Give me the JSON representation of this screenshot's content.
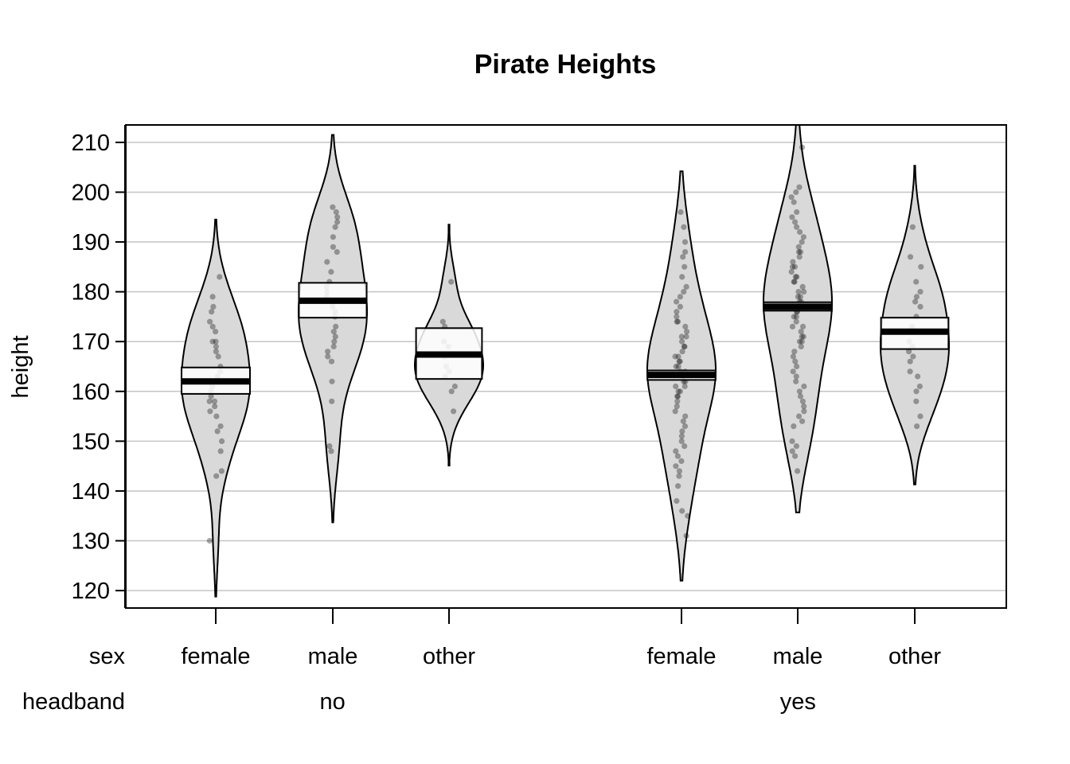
{
  "chart_data": {
    "type": "pirateplot",
    "title": "Pirate Heights",
    "ylabel": "height",
    "xlabel": "",
    "ylim": [
      116.5,
      213.5
    ],
    "yticks": [
      120,
      130,
      140,
      150,
      160,
      170,
      180,
      190,
      200,
      210
    ],
    "grid": true,
    "factor_labels": {
      "inner": "sex",
      "outer": "headband"
    },
    "groups": [
      {
        "label": "no",
        "categories": [
          "female",
          "male",
          "other"
        ]
      },
      {
        "label": "yes",
        "categories": [
          "female",
          "male",
          "other"
        ]
      }
    ],
    "series": [
      {
        "headband": "no",
        "sex": "female",
        "mean": 162.0,
        "ci": [
          159.5,
          164.8
        ],
        "range": [
          118.8,
          194.5
        ],
        "points": [
          183,
          179,
          177,
          176,
          174,
          173,
          172,
          170,
          170,
          169,
          168,
          167,
          165,
          164,
          163,
          162,
          161,
          160,
          159,
          158,
          158,
          157,
          156,
          155,
          153,
          152,
          150,
          148,
          144,
          143,
          130
        ]
      },
      {
        "headband": "no",
        "sex": "male",
        "mean": 178.2,
        "ci": [
          174.8,
          181.8
        ],
        "range": [
          133.7,
          211.5
        ],
        "points": [
          197,
          196,
          195,
          194,
          193,
          191,
          189,
          188,
          186,
          184,
          182,
          181,
          180,
          179,
          178,
          177,
          176,
          175,
          173,
          172,
          171,
          170,
          169,
          168,
          167,
          166,
          162,
          158,
          149,
          148
        ]
      },
      {
        "headband": "no",
        "sex": "other",
        "mean": 167.4,
        "ci": [
          162.5,
          172.7
        ],
        "range": [
          145.1,
          193.5
        ],
        "points": [
          182,
          174,
          173,
          170,
          169,
          167,
          165,
          164,
          163,
          161,
          160,
          156
        ]
      },
      {
        "headband": "yes",
        "sex": "female",
        "mean": 163.3,
        "ci": [
          162.3,
          164.2
        ],
        "range": [
          122.0,
          204.2
        ],
        "points": [
          196,
          193,
          190,
          188,
          187,
          185,
          183,
          181,
          180,
          179,
          178,
          177,
          176,
          175,
          174,
          174,
          173,
          172,
          171,
          171,
          170,
          169,
          169,
          168,
          167,
          167,
          166,
          166,
          165,
          165,
          164,
          164,
          163,
          163,
          163,
          162,
          162,
          161,
          161,
          160,
          160,
          159,
          159,
          158,
          157,
          156,
          155,
          154,
          153,
          152,
          151,
          150,
          149,
          148,
          147,
          146,
          145,
          144,
          143,
          141,
          138,
          136,
          135,
          131
        ]
      },
      {
        "headband": "yes",
        "sex": "male",
        "mean": 177.0,
        "ci": [
          176.2,
          177.9
        ],
        "range": [
          135.7,
          213.5
        ],
        "points": [
          209,
          201,
          200,
          199,
          198,
          196,
          195,
          194,
          193,
          192,
          191,
          190,
          189,
          188,
          188,
          187,
          186,
          185,
          185,
          184,
          183,
          183,
          182,
          182,
          181,
          180,
          180,
          179,
          179,
          178,
          178,
          177,
          177,
          176,
          176,
          175,
          175,
          174,
          173,
          173,
          172,
          171,
          171,
          170,
          170,
          169,
          168,
          167,
          166,
          165,
          164,
          163,
          162,
          161,
          160,
          159,
          158,
          157,
          156,
          155,
          154,
          153,
          150,
          149,
          148,
          147,
          144
        ]
      },
      {
        "headband": "yes",
        "sex": "other",
        "mean": 172.0,
        "ci": [
          168.5,
          174.8
        ],
        "range": [
          141.3,
          205.3
        ],
        "points": [
          193,
          187,
          185,
          182,
          180,
          179,
          178,
          177,
          175,
          173,
          172,
          170,
          169,
          168,
          167,
          166,
          164,
          163,
          161,
          160,
          158,
          155,
          153
        ]
      }
    ]
  }
}
